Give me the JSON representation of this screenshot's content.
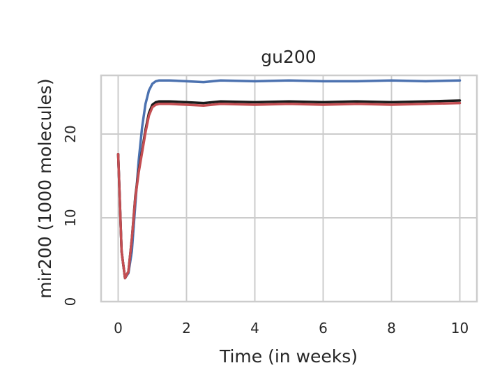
{
  "chart_data": {
    "type": "line",
    "title": "gu200",
    "xlabel": "Time (in weeks)",
    "ylabel": "mir200 (1000 molecules)",
    "xlim": [
      -0.5,
      10.5
    ],
    "ylim": [
      0,
      27
    ],
    "xticks": [
      0,
      2,
      4,
      6,
      8,
      10
    ],
    "yticks": [
      0,
      10,
      20
    ],
    "grid": true,
    "legend": "none",
    "series": [
      {
        "color": "#4c72b0",
        "x": [
          0,
          0.1,
          0.2,
          0.3,
          0.4,
          0.5,
          0.6,
          0.7,
          0.8,
          0.9,
          1.0,
          1.1,
          1.2,
          1.5,
          2,
          2.5,
          3,
          4,
          5,
          6,
          7,
          8,
          9,
          10
        ],
        "y": [
          17.6,
          6.0,
          2.8,
          3.4,
          6.0,
          11.5,
          16.8,
          20.8,
          23.6,
          25.2,
          26.0,
          26.3,
          26.4,
          26.4,
          26.3,
          26.2,
          26.4,
          26.3,
          26.4,
          26.3,
          26.3,
          26.4,
          26.3,
          26.4
        ]
      },
      {
        "color": "#1a1a1a",
        "x": [
          0,
          0.1,
          0.2,
          0.3,
          0.4,
          0.5,
          0.6,
          0.7,
          0.8,
          0.9,
          1.0,
          1.1,
          1.2,
          1.5,
          2,
          2.5,
          3,
          4,
          5,
          6,
          7,
          8,
          9,
          10
        ],
        "y": [
          17.6,
          6.0,
          2.8,
          3.6,
          7.5,
          12.5,
          15.6,
          18.0,
          20.5,
          22.5,
          23.5,
          23.8,
          23.9,
          23.9,
          23.8,
          23.7,
          23.9,
          23.8,
          23.9,
          23.8,
          23.9,
          23.8,
          23.9,
          24.0
        ]
      },
      {
        "color": "#c44e52",
        "x": [
          0,
          0.1,
          0.2,
          0.3,
          0.4,
          0.5,
          0.6,
          0.7,
          0.8,
          0.9,
          1.0,
          1.1,
          1.2,
          1.5,
          2,
          2.5,
          3,
          4,
          5,
          6,
          7,
          8,
          9,
          10
        ],
        "y": [
          17.6,
          6.0,
          2.8,
          3.6,
          7.5,
          12.3,
          15.4,
          17.8,
          20.2,
          22.2,
          23.2,
          23.5,
          23.6,
          23.6,
          23.5,
          23.4,
          23.6,
          23.5,
          23.6,
          23.5,
          23.6,
          23.5,
          23.6,
          23.7
        ]
      }
    ]
  }
}
